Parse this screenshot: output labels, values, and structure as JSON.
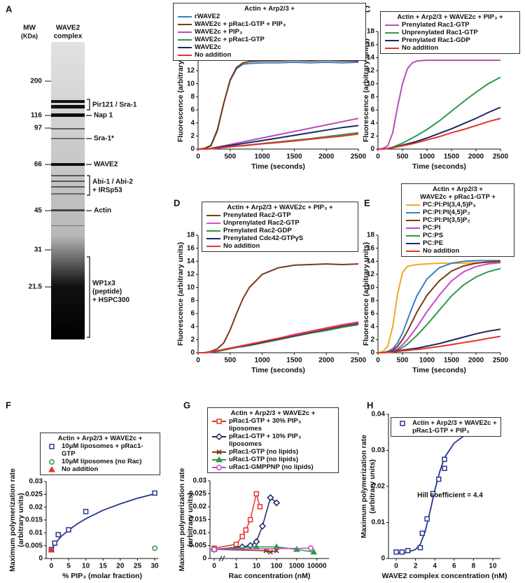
{
  "gel": {
    "label": "A",
    "mw_header": [
      "MW",
      "(KDa)"
    ],
    "lane_header": [
      "WAVE2",
      "complex"
    ],
    "markers": [
      200,
      116,
      97,
      66,
      45,
      31,
      21.5
    ],
    "band_labels": [
      [
        "Pir121 / Sra-1"
      ],
      [
        "Nap 1"
      ],
      [
        "Sra-1*"
      ],
      [
        "WAVE2"
      ],
      [
        "Abi-1 / Abi-2",
        "+ IRSp53"
      ],
      [
        "Actin"
      ],
      [
        "WP1x3",
        "(peptide)",
        "+ HSPC300"
      ]
    ]
  },
  "chart_data": [
    {
      "type": "line",
      "label": "B",
      "legend_title": [
        "Actin + Arp2/3 +"
      ],
      "xlabel": "Time (seconds)",
      "ylabel": "Fluorescence (arbitrary units)",
      "x": [
        0,
        100,
        200,
        300,
        400,
        500,
        600,
        700,
        800,
        1000,
        1250,
        1500,
        1750,
        2000,
        2250,
        2500
      ],
      "xlim": [
        0,
        2500
      ],
      "xticks": [
        0,
        500,
        1000,
        1500,
        2000,
        2500
      ],
      "ylim": [
        0,
        18
      ],
      "yticks": [
        0,
        2,
        4,
        6,
        8,
        10,
        12,
        14,
        16,
        18
      ],
      "series": [
        {
          "name": "rWAVE2",
          "color": "#3b7dc4",
          "values": [
            0,
            0.1,
            0.6,
            3,
            7,
            10.5,
            12.3,
            13,
            13.1,
            13.2,
            13.2,
            13.3,
            13.2,
            13.3,
            13.2,
            13.3
          ]
        },
        {
          "name": "WAVE2c + pRac1-GTP + PIP₃",
          "color": "#7a3b17",
          "values": [
            0,
            0.1,
            0.5,
            2.8,
            7,
            10.6,
            12.5,
            13.2,
            13.4,
            13.5,
            13.5,
            13.6,
            13.5,
            13.6,
            13.5,
            13.5
          ]
        },
        {
          "name": "WAVE2c + PIP₃",
          "color": "#b54fb5",
          "values": [
            0,
            0,
            0.1,
            0.3,
            0.5,
            0.7,
            0.9,
            1.1,
            1.3,
            1.7,
            2.2,
            2.7,
            3.2,
            3.7,
            4.2,
            4.7
          ]
        },
        {
          "name": "WAVE2c + pRac1-GTP",
          "color": "#2b9a4a",
          "values": [
            0,
            0,
            0.05,
            0.15,
            0.25,
            0.35,
            0.45,
            0.55,
            0.65,
            0.85,
            1.1,
            1.35,
            1.6,
            1.9,
            2.2,
            2.5
          ]
        },
        {
          "name": "WAVE2c",
          "color": "#1f2766",
          "values": [
            0,
            0,
            0.1,
            0.25,
            0.4,
            0.55,
            0.7,
            0.85,
            1,
            1.3,
            1.7,
            2.1,
            2.5,
            2.9,
            3.3,
            3.6
          ]
        },
        {
          "name": "No addition",
          "color": "#e8322b",
          "values": [
            0,
            0,
            0.05,
            0.15,
            0.25,
            0.35,
            0.45,
            0.5,
            0.6,
            0.8,
            1,
            1.25,
            1.5,
            1.75,
            2,
            2.3
          ]
        }
      ]
    },
    {
      "type": "line",
      "label": "C",
      "legend_title": [
        "Actin + Arp2/3 + WAVE2c + PIP₃ +"
      ],
      "xlabel": "Time (seconds)",
      "ylabel": "Fluorescence (arbitrary units)",
      "x": [
        0,
        100,
        200,
        300,
        400,
        500,
        600,
        700,
        800,
        1000,
        1250,
        1500,
        1750,
        2000,
        2250,
        2500
      ],
      "xlim": [
        0,
        2500
      ],
      "xticks": [
        0,
        500,
        1000,
        1500,
        2000,
        2500
      ],
      "ylim": [
        0,
        18
      ],
      "yticks": [
        0,
        2,
        4,
        6,
        8,
        10,
        12,
        14,
        16,
        18
      ],
      "series": [
        {
          "name": "Prenylated Rac1-GTP",
          "color": "#b54fb5",
          "values": [
            0,
            0.1,
            0.5,
            2.5,
            6.5,
            10,
            12.3,
            13.2,
            13.5,
            13.6,
            13.6,
            13.6,
            13.6,
            13.6,
            13.6,
            13.6
          ]
        },
        {
          "name": "Unprenylated Rac1-GTP",
          "color": "#2b9a4a",
          "values": [
            0,
            0,
            0.1,
            0.3,
            0.6,
            0.9,
            1.3,
            1.7,
            2.1,
            3,
            4.3,
            5.8,
            7.3,
            8.7,
            10,
            11
          ]
        },
        {
          "name": "Prenylated Rac1-GDP",
          "color": "#1f2766",
          "values": [
            0,
            0,
            0.1,
            0.2,
            0.4,
            0.6,
            0.8,
            1,
            1.2,
            1.7,
            2.4,
            3.1,
            3.9,
            4.7,
            5.6,
            6.4
          ]
        },
        {
          "name": "No addition",
          "color": "#e8322b",
          "values": [
            0,
            0,
            0.1,
            0.2,
            0.35,
            0.5,
            0.65,
            0.8,
            1,
            1.4,
            1.9,
            2.5,
            3,
            3.6,
            4.2,
            4.7
          ]
        }
      ]
    },
    {
      "type": "line",
      "label": "D",
      "legend_title": [
        "Actin + Arp2/3 + WAVE2c + PIP₃ +"
      ],
      "xlabel": "Time (seconds)",
      "ylabel": "Fluorescence (arbitrary units)",
      "x": [
        0,
        100,
        200,
        300,
        400,
        500,
        600,
        700,
        800,
        1000,
        1250,
        1500,
        1750,
        2000,
        2250,
        2500
      ],
      "xlim": [
        0,
        2500
      ],
      "xticks": [
        0,
        500,
        1000,
        1500,
        2000,
        2500
      ],
      "ylim": [
        0,
        18
      ],
      "yticks": [
        0,
        2,
        4,
        6,
        8,
        10,
        12,
        14,
        16,
        18
      ],
      "series": [
        {
          "name": "Prenylated Rac2-GTP",
          "color": "#7a3b17",
          "values": [
            0,
            0,
            0.2,
            0.6,
            1.5,
            3.5,
            6,
            8.3,
            10,
            12,
            13,
            13.4,
            13.5,
            13.6,
            13.5,
            13.6
          ]
        },
        {
          "name": "Unprenylated Rac2-GTP",
          "color": "#d44fd0",
          "values": [
            0,
            0,
            0.1,
            0.3,
            0.5,
            0.7,
            0.9,
            1.1,
            1.3,
            1.7,
            2.2,
            2.8,
            3.3,
            3.8,
            4.3,
            4.7
          ]
        },
        {
          "name": "Prenylated Rac2-GDP",
          "color": "#2b9a4a",
          "values": [
            0,
            0,
            0.1,
            0.2,
            0.4,
            0.6,
            0.8,
            0.95,
            1.1,
            1.5,
            2,
            2.5,
            3,
            3.4,
            3.9,
            4.3
          ]
        },
        {
          "name": "Prenylated Cdc42-GTPγS",
          "color": "#1f2766",
          "values": [
            0,
            0,
            0.1,
            0.3,
            0.5,
            0.7,
            0.9,
            1.05,
            1.2,
            1.6,
            2.1,
            2.6,
            3.1,
            3.6,
            4.1,
            4.5
          ]
        },
        {
          "name": "No addition",
          "color": "#e8322b",
          "values": [
            0,
            0,
            0.1,
            0.3,
            0.5,
            0.7,
            0.9,
            1.1,
            1.3,
            1.7,
            2.2,
            2.7,
            3.2,
            3.7,
            4.2,
            4.6
          ]
        }
      ]
    },
    {
      "type": "line",
      "label": "E",
      "legend_title": [
        "Actin + Arp2/3 +",
        "WAVE2c + pRac1-GTP +"
      ],
      "xlabel": "Time (seconds)",
      "ylabel": "Fluorescence (arbitrary units)",
      "x": [
        0,
        100,
        200,
        300,
        400,
        500,
        600,
        700,
        800,
        1000,
        1250,
        1500,
        1750,
        2000,
        2250,
        2500
      ],
      "xlim": [
        0,
        2500
      ],
      "xticks": [
        0,
        500,
        1000,
        1500,
        2000,
        2500
      ],
      "ylim": [
        0,
        18
      ],
      "yticks": [
        0,
        2,
        4,
        6,
        8,
        10,
        12,
        14,
        16,
        18
      ],
      "series": [
        {
          "name": "PC:PI:PI(3,4,5)P₃",
          "color": "#f5a623",
          "values": [
            0,
            0.2,
            1,
            4,
            9,
            12.3,
            13.2,
            13.4,
            13.5,
            13.6,
            13.7,
            13.7,
            13.7,
            13.8,
            13.8,
            13.8
          ]
        },
        {
          "name": "PC:PI:PI(4,5)P₂",
          "color": "#3b7dc4",
          "values": [
            0,
            0,
            0.2,
            0.6,
            1.5,
            3,
            5,
            7,
            8.8,
            11.3,
            13,
            13.7,
            14,
            14.1,
            14.1,
            14.1
          ]
        },
        {
          "name": "PC:PI:PI(3,5)P₂",
          "color": "#7a3b17",
          "values": [
            0,
            0,
            0.1,
            0.4,
            1,
            2,
            3.3,
            4.8,
            6.3,
            8.8,
            11,
            12.5,
            13.3,
            13.7,
            13.9,
            14
          ]
        },
        {
          "name": "PC:PI",
          "color": "#cc44cc",
          "values": [
            0,
            0,
            0.1,
            0.3,
            0.6,
            1.2,
            2,
            3,
            4,
            6.3,
            8.8,
            11,
            12.4,
            13.2,
            13.6,
            13.8
          ]
        },
        {
          "name": "PC:PS",
          "color": "#2b9a4a",
          "values": [
            0,
            0,
            0.1,
            0.2,
            0.4,
            0.8,
            1.3,
            2,
            2.7,
            4.3,
            6.5,
            8.7,
            10.4,
            11.6,
            12.4,
            12.9
          ]
        },
        {
          "name": "PC:PE",
          "color": "#1f2766",
          "values": [
            0,
            0,
            0.1,
            0.2,
            0.3,
            0.4,
            0.5,
            0.6,
            0.7,
            1,
            1.4,
            1.9,
            2.4,
            2.9,
            3.3,
            3.6
          ]
        },
        {
          "name": "No addition",
          "color": "#e8322b",
          "values": [
            0,
            0,
            0.05,
            0.1,
            0.2,
            0.3,
            0.35,
            0.45,
            0.5,
            0.7,
            0.95,
            1.25,
            1.55,
            1.85,
            2.2,
            2.5
          ]
        }
      ]
    },
    {
      "type": "scatter",
      "label": "F",
      "legend_title": [
        "Actin + Arp2/3 + WAVE2c +"
      ],
      "xlabel": "% PIP₃ (molar fraction)",
      "ylabel": [
        "Maximum polymerization rate",
        "(arbitrary units)"
      ],
      "xlim": [
        -1.5,
        31
      ],
      "xticks": [
        0,
        5,
        10,
        15,
        20,
        25,
        30
      ],
      "ylim": [
        0,
        0.03
      ],
      "yticks": [
        0,
        0.005,
        0.01,
        0.015,
        0.02,
        0.025,
        0.03
      ],
      "series": [
        {
          "name": "10μM liposomes + pRac1-GTP",
          "color": "#2a3590",
          "marker": "square",
          "x": [
            0,
            1,
            2,
            5,
            10,
            30
          ],
          "values": [
            0.0035,
            0.006,
            0.0093,
            0.0112,
            0.0183,
            0.0255
          ]
        },
        {
          "name": "10μM liposomes (no Rac)",
          "color": "#2b9a4a",
          "marker": "circle",
          "x": [
            30
          ],
          "values": [
            0.004
          ]
        },
        {
          "name": "No addition",
          "color": "#e8322b",
          "marker": "triangle",
          "x": [
            0
          ],
          "values": [
            0.0033
          ]
        }
      ],
      "fit": {
        "color": "#2a3590",
        "x": [
          0,
          1,
          2,
          3,
          5,
          7.5,
          10,
          15,
          20,
          25,
          30
        ],
        "values": [
          0.0033,
          0.0055,
          0.0073,
          0.0088,
          0.011,
          0.0135,
          0.0155,
          0.0188,
          0.0213,
          0.0235,
          0.0252
        ]
      }
    },
    {
      "type": "scatter",
      "label": "G",
      "legend_title": [
        "Actin + Arp2/3 + WAVE2c +"
      ],
      "connect_points": true,
      "xscale": "log",
      "axis_break": true,
      "xlabel": "Rac concentration (nM)",
      "ylabel": [
        "Maximum polymerization rate",
        "(arbitrary units)"
      ],
      "xlim": [
        0.05,
        40000
      ],
      "xticks": [
        0,
        1,
        10,
        100,
        1000,
        10000
      ],
      "ylim": [
        0,
        0.03
      ],
      "yticks": [
        0,
        0.005,
        0.01,
        0.015,
        0.02,
        0.025,
        0.03
      ],
      "series": [
        {
          "name": "pRac1-GTP + 30% PIP₃ liposomes",
          "color": "#e8322b",
          "marker": "square",
          "x": [
            0,
            1,
            2,
            3,
            5,
            10,
            15
          ],
          "values": [
            0.004,
            0.0055,
            0.0085,
            0.011,
            0.015,
            0.025,
            0.02
          ]
        },
        {
          "name": "pRac1-GTP + 10% PIP₃ liposomes",
          "color": "#1f2766",
          "marker": "diamond",
          "x": [
            0,
            2,
            5,
            10,
            20,
            50,
            100
          ],
          "values": [
            0.0035,
            0.0045,
            0.005,
            0.0065,
            0.0125,
            0.0235,
            0.0215
          ]
        },
        {
          "name": "pRac1-GTP (no lipids)",
          "color": "#7a3b17",
          "marker": "cross",
          "x": [
            0,
            30,
            50,
            100
          ],
          "values": [
            0.0035,
            0.003,
            0.0025,
            0.003
          ]
        },
        {
          "name": "uRac1-GTP (no lipids)",
          "color": "#2b9a4a",
          "marker": "triangle",
          "x": [
            0,
            10,
            100,
            1000,
            7000
          ],
          "values": [
            0.0035,
            0.0045,
            0.0045,
            0.0035,
            0.0025
          ]
        },
        {
          "name": "uRac1-GMPPNP (no lipids)",
          "color": "#cc44cc",
          "marker": "circle",
          "x": [
            0,
            5000
          ],
          "values": [
            0.0035,
            0.004
          ]
        }
      ]
    },
    {
      "type": "scatter",
      "label": "H",
      "annotation": "Hill coefficient = 4.4",
      "xlabel": "WAVE2 complex concentration (nM)",
      "ylabel": [
        "Maximum polymerization rate",
        "(arbitrary units)"
      ],
      "xlim": [
        -0.8,
        10.8
      ],
      "xticks": [
        0,
        2,
        4,
        6,
        8,
        10
      ],
      "ylim": [
        0,
        0.04
      ],
      "yticks": [
        0,
        0.01,
        0.02,
        0.03,
        0.04
      ],
      "series": [
        {
          "name": "Actin + Arp2/3 + WAVE2c + pRac1-GTP + PIP₃",
          "color": "#2a3590",
          "marker": "square",
          "x": [
            0,
            0.6,
            1.2,
            2.5,
            2.7,
            3.2,
            3.8,
            4.4,
            5,
            5,
            10
          ],
          "values": [
            0.0018,
            0.0018,
            0.0022,
            0.003,
            0.007,
            0.011,
            0.018,
            0.022,
            0.025,
            0.0275,
            0.0375
          ]
        }
      ],
      "fit": {
        "color": "#2a3590",
        "x": [
          0,
          1,
          2,
          2.5,
          3,
          3.5,
          4,
          4.5,
          5,
          6,
          7,
          8,
          10
        ],
        "values": [
          0.0015,
          0.0016,
          0.0025,
          0.004,
          0.0075,
          0.013,
          0.019,
          0.024,
          0.028,
          0.032,
          0.034,
          0.035,
          0.036
        ]
      }
    }
  ]
}
